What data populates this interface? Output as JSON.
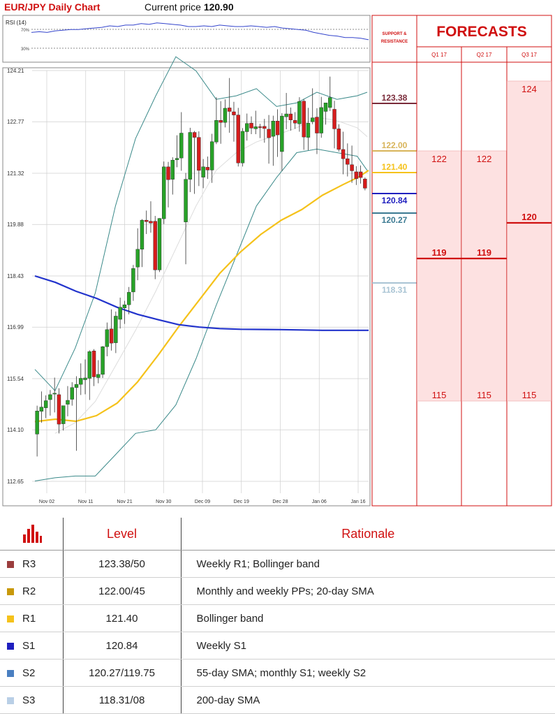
{
  "header": {
    "title": "EUR/JPY Daily Chart",
    "price_label": "Current price",
    "price_value": "120.90"
  },
  "rsi": {
    "label": "RSI (14)",
    "upper_label": "70%",
    "lower_label": "30%",
    "values": [
      62,
      63,
      62,
      64,
      65,
      66,
      66,
      67,
      68,
      69,
      71,
      70,
      72,
      72,
      74,
      73,
      75,
      74,
      73,
      72,
      70,
      70,
      71,
      70,
      72,
      71,
      70,
      70,
      71,
      70,
      69,
      70,
      68,
      67,
      66,
      65,
      62,
      60,
      58,
      57,
      55,
      55,
      54,
      52
    ]
  },
  "chart_data": {
    "type": "candlestick",
    "y_ticks": [
      "124.21",
      "122.77",
      "121.32",
      "119.88",
      "118.43",
      "116.99",
      "115.54",
      "114.10",
      "112.65"
    ],
    "ylim": [
      112.65,
      124.21
    ],
    "x_ticks": [
      "Nov 02",
      "Nov 11",
      "Nov 21",
      "Nov 30",
      "Dec 09",
      "Dec 19",
      "Dec 28",
      "Jan 06",
      "Jan 16"
    ],
    "candles": [
      {
        "o": 113.98,
        "h": 114.78,
        "l": 113.35,
        "c": 114.63
      },
      {
        "o": 114.62,
        "h": 115.18,
        "l": 114.3,
        "c": 114.74
      },
      {
        "o": 114.72,
        "h": 115.07,
        "l": 114.43,
        "c": 114.92
      },
      {
        "o": 114.95,
        "h": 115.22,
        "l": 114.5,
        "c": 115.09
      },
      {
        "o": 115.12,
        "h": 115.57,
        "l": 114.59,
        "c": 115.13
      },
      {
        "o": 115.09,
        "h": 115.27,
        "l": 114.0,
        "c": 114.26
      },
      {
        "o": 114.27,
        "h": 114.75,
        "l": 114.08,
        "c": 114.78
      },
      {
        "o": 114.82,
        "h": 115.33,
        "l": 114.48,
        "c": 114.93
      },
      {
        "o": 114.96,
        "h": 115.44,
        "l": 114.78,
        "c": 115.29
      },
      {
        "o": 115.29,
        "h": 115.61,
        "l": 113.51,
        "c": 115.38
      },
      {
        "o": 115.38,
        "h": 115.97,
        "l": 115.08,
        "c": 115.55
      },
      {
        "o": 115.51,
        "h": 116.08,
        "l": 115.1,
        "c": 115.56
      },
      {
        "o": 115.55,
        "h": 116.34,
        "l": 114.94,
        "c": 116.3
      },
      {
        "o": 116.32,
        "h": 116.37,
        "l": 115.33,
        "c": 115.59
      },
      {
        "o": 115.57,
        "h": 116.06,
        "l": 115.41,
        "c": 115.66
      },
      {
        "o": 115.66,
        "h": 116.46,
        "l": 115.56,
        "c": 116.44
      },
      {
        "o": 116.44,
        "h": 117.12,
        "l": 116.17,
        "c": 116.92
      },
      {
        "o": 116.94,
        "h": 117.49,
        "l": 116.33,
        "c": 116.54
      },
      {
        "o": 116.55,
        "h": 117.43,
        "l": 116.26,
        "c": 117.3
      },
      {
        "o": 117.21,
        "h": 117.82,
        "l": 116.95,
        "c": 117.55
      },
      {
        "o": 117.53,
        "h": 117.73,
        "l": 117.08,
        "c": 117.62
      },
      {
        "o": 117.62,
        "h": 118.12,
        "l": 117.35,
        "c": 117.97
      },
      {
        "o": 117.98,
        "h": 118.74,
        "l": 117.73,
        "c": 118.64
      },
      {
        "o": 118.68,
        "h": 119.77,
        "l": 118.31,
        "c": 119.18
      },
      {
        "o": 119.18,
        "h": 120.03,
        "l": 118.68,
        "c": 120.0
      },
      {
        "o": 120.0,
        "h": 120.27,
        "l": 119.61,
        "c": 119.96
      },
      {
        "o": 119.97,
        "h": 120.53,
        "l": 119.65,
        "c": 119.92
      },
      {
        "o": 119.97,
        "h": 120.12,
        "l": 118.34,
        "c": 118.6
      },
      {
        "o": 118.6,
        "h": 120.06,
        "l": 118.54,
        "c": 120.05
      },
      {
        "o": 120.04,
        "h": 121.65,
        "l": 119.89,
        "c": 121.5
      },
      {
        "o": 121.5,
        "h": 121.64,
        "l": 120.36,
        "c": 121.14
      },
      {
        "o": 121.15,
        "h": 121.77,
        "l": 120.72,
        "c": 121.69
      },
      {
        "o": 121.7,
        "h": 122.39,
        "l": 121.49,
        "c": 121.74
      },
      {
        "o": 121.75,
        "h": 123.04,
        "l": 121.39,
        "c": 122.45
      },
      {
        "o": 119.95,
        "h": 121.33,
        "l": 118.76,
        "c": 121.15
      },
      {
        "o": 121.15,
        "h": 122.6,
        "l": 120.79,
        "c": 122.47
      },
      {
        "o": 122.47,
        "h": 122.51,
        "l": 120.74,
        "c": 122.33
      },
      {
        "o": 122.33,
        "h": 122.5,
        "l": 120.96,
        "c": 121.4
      },
      {
        "o": 121.21,
        "h": 121.72,
        "l": 120.9,
        "c": 121.5
      },
      {
        "o": 121.49,
        "h": 121.79,
        "l": 121.16,
        "c": 121.41
      },
      {
        "o": 121.41,
        "h": 122.43,
        "l": 121.05,
        "c": 122.21
      },
      {
        "o": 122.2,
        "h": 123.46,
        "l": 122.14,
        "c": 122.81
      },
      {
        "o": 122.81,
        "h": 123.35,
        "l": 122.15,
        "c": 122.75
      },
      {
        "o": 122.75,
        "h": 123.4,
        "l": 122.61,
        "c": 123.15
      },
      {
        "o": 123.16,
        "h": 124.0,
        "l": 122.46,
        "c": 123.06
      },
      {
        "o": 123.05,
        "h": 123.33,
        "l": 122.21,
        "c": 122.96
      },
      {
        "o": 122.96,
        "h": 123.16,
        "l": 121.51,
        "c": 121.61
      },
      {
        "o": 121.61,
        "h": 122.59,
        "l": 121.51,
        "c": 122.5
      },
      {
        "o": 122.49,
        "h": 123.0,
        "l": 122.24,
        "c": 122.72
      },
      {
        "o": 122.73,
        "h": 122.92,
        "l": 122.42,
        "c": 122.59
      },
      {
        "o": 122.57,
        "h": 123.08,
        "l": 122.42,
        "c": 122.63
      },
      {
        "o": 122.63,
        "h": 122.71,
        "l": 122.31,
        "c": 122.62
      },
      {
        "o": 122.64,
        "h": 122.85,
        "l": 122.18,
        "c": 122.58
      },
      {
        "o": 122.56,
        "h": 122.96,
        "l": 121.59,
        "c": 122.32
      },
      {
        "o": 122.36,
        "h": 122.94,
        "l": 121.53,
        "c": 122.79
      },
      {
        "o": 122.79,
        "h": 123.12,
        "l": 121.78,
        "c": 122.4
      },
      {
        "o": 121.93,
        "h": 123.01,
        "l": 121.38,
        "c": 122.93
      },
      {
        "o": 122.91,
        "h": 123.58,
        "l": 122.56,
        "c": 122.99
      },
      {
        "o": 122.99,
        "h": 123.17,
        "l": 122.52,
        "c": 122.82
      },
      {
        "o": 122.81,
        "h": 123.04,
        "l": 122.57,
        "c": 122.73
      },
      {
        "o": 122.71,
        "h": 123.46,
        "l": 122.49,
        "c": 123.34
      },
      {
        "o": 123.35,
        "h": 123.41,
        "l": 121.98,
        "c": 122.34
      },
      {
        "o": 122.33,
        "h": 123.16,
        "l": 121.97,
        "c": 122.73
      },
      {
        "o": 122.77,
        "h": 123.71,
        "l": 122.7,
        "c": 122.88
      },
      {
        "o": 122.9,
        "h": 123.15,
        "l": 121.86,
        "c": 122.45
      },
      {
        "o": 122.45,
        "h": 123.47,
        "l": 122.32,
        "c": 123.17
      },
      {
        "o": 123.06,
        "h": 123.25,
        "l": 122.69,
        "c": 123.3
      },
      {
        "o": 123.17,
        "h": 124.04,
        "l": 123.07,
        "c": 123.45
      },
      {
        "o": 123.12,
        "h": 123.36,
        "l": 122.02,
        "c": 122.57
      },
      {
        "o": 122.57,
        "h": 122.7,
        "l": 121.93,
        "c": 121.99
      },
      {
        "o": 121.99,
        "h": 122.49,
        "l": 121.29,
        "c": 121.73
      },
      {
        "o": 121.73,
        "h": 122.16,
        "l": 121.23,
        "c": 121.57
      },
      {
        "o": 121.56,
        "h": 122.1,
        "l": 121.05,
        "c": 121.39
      },
      {
        "o": 121.36,
        "h": 121.52,
        "l": 120.99,
        "c": 121.17
      },
      {
        "o": 121.36,
        "h": 121.54,
        "l": 121.03,
        "c": 121.2
      },
      {
        "o": 121.16,
        "h": 121.2,
        "l": 120.84,
        "c": 120.9
      }
    ],
    "bollinger_upper": [
      [
        0,
        115.8
      ],
      [
        10,
        115.2
      ],
      [
        20,
        116.4
      ],
      [
        30,
        117.95
      ],
      [
        40,
        120.4
      ],
      [
        50,
        122.3
      ],
      [
        60,
        123.5
      ],
      [
        70,
        124.6
      ],
      [
        80,
        124.2
      ],
      [
        90,
        123.4
      ],
      [
        100,
        123.5
      ],
      [
        110,
        123.7
      ],
      [
        120,
        123.2
      ],
      [
        130,
        123.3
      ],
      [
        140,
        123.6
      ],
      [
        150,
        123.4
      ],
      [
        160,
        123.5
      ],
      [
        165,
        123.6
      ]
    ],
    "bollinger_lower": [
      [
        0,
        112.66
      ],
      [
        10,
        112.75
      ],
      [
        20,
        112.8
      ],
      [
        30,
        112.8
      ],
      [
        40,
        113.4
      ],
      [
        50,
        114.0
      ],
      [
        60,
        114.1
      ],
      [
        70,
        114.8
      ],
      [
        80,
        116.1
      ],
      [
        90,
        117.6
      ],
      [
        100,
        119.0
      ],
      [
        110,
        120.4
      ],
      [
        120,
        121.2
      ],
      [
        130,
        121.9
      ],
      [
        140,
        122.0
      ],
      [
        150,
        121.9
      ],
      [
        160,
        121.8
      ],
      [
        165,
        121.4
      ]
    ],
    "sma20": [
      [
        10,
        114.0
      ],
      [
        20,
        114.3
      ],
      [
        30,
        114.9
      ],
      [
        40,
        115.9
      ],
      [
        50,
        116.9
      ],
      [
        60,
        118.0
      ],
      [
        70,
        119.2
      ],
      [
        80,
        120.4
      ],
      [
        90,
        121.4
      ],
      [
        100,
        121.9
      ],
      [
        110,
        122.2
      ],
      [
        120,
        122.4
      ],
      [
        130,
        122.6
      ],
      [
        140,
        122.9
      ],
      [
        150,
        122.8
      ],
      [
        160,
        122.6
      ],
      [
        165,
        122.35
      ]
    ],
    "sma55": [
      [
        0,
        114.33
      ],
      [
        20,
        114.4
      ],
      [
        40,
        114.34
      ],
      [
        60,
        114.5
      ],
      [
        80,
        114.85
      ],
      [
        100,
        115.45
      ],
      [
        120,
        116.2
      ],
      [
        140,
        117.0
      ],
      [
        160,
        117.75
      ],
      [
        180,
        118.5
      ],
      [
        200,
        119.1
      ],
      [
        220,
        119.6
      ],
      [
        240,
        120.0
      ],
      [
        260,
        120.3
      ],
      [
        280,
        120.7
      ],
      [
        300,
        121.0
      ],
      [
        315,
        121.21
      ],
      [
        325,
        121.4
      ]
    ],
    "sma200": [
      [
        0,
        118.43
      ],
      [
        20,
        118.25
      ],
      [
        40,
        118.0
      ],
      [
        60,
        117.8
      ],
      [
        80,
        117.55
      ],
      [
        100,
        117.35
      ],
      [
        120,
        117.2
      ],
      [
        140,
        117.06
      ],
      [
        160,
        116.99
      ],
      [
        180,
        116.95
      ],
      [
        200,
        116.93
      ],
      [
        240,
        116.92
      ],
      [
        280,
        116.9
      ],
      [
        325,
        116.9
      ]
    ],
    "sr_levels": [
      {
        "value": 123.38,
        "label": "123.38",
        "color": "#7a2b3a"
      },
      {
        "value": 122.0,
        "label": "122.00",
        "color": "#d8b45a"
      },
      {
        "value": 121.4,
        "label": "121.40",
        "color": "#f5c21b"
      },
      {
        "value": 120.84,
        "label": "120.84",
        "color": "#1f1fbf"
      },
      {
        "value": 120.27,
        "label": "120.27",
        "color": "#3b7a92"
      },
      {
        "value": 118.31,
        "label": "118.31",
        "color": "#a9c4d4"
      }
    ]
  },
  "sr_header": [
    "SUPPORT &",
    "RESISTANCE"
  ],
  "forecasts": {
    "title": "FORECASTS",
    "quarters": [
      "Q1 17",
      "Q2 17",
      "Q3 17"
    ],
    "columns": [
      {
        "high": 122,
        "mid": 119,
        "low": 115
      },
      {
        "high": 122,
        "mid": 119,
        "low": 115
      },
      {
        "high": 124,
        "mid": 120,
        "low": 115
      }
    ]
  },
  "table": {
    "icon_name": "bar-chart-icon",
    "header_level": "Level",
    "header_rationale": "Rationale",
    "rows": [
      {
        "name": "R3",
        "level": "123.38/50",
        "rationale": "Weekly R1; Bollinger band",
        "color": "#9b3d3d"
      },
      {
        "name": "R2",
        "level": "122.00/45",
        "rationale": "Monthly and weekly PPs; 20-day SMA",
        "color": "#c8990a"
      },
      {
        "name": "R1",
        "level": "121.40",
        "rationale": "Bollinger band",
        "color": "#f5c21b"
      },
      {
        "name": "S1",
        "level": "120.84",
        "rationale": "Weekly S1",
        "color": "#1f1fbf"
      },
      {
        "name": "S2",
        "level": "120.27/119.75",
        "rationale": "55-day SMA; monthly S1; weekly S2",
        "color": "#4a7fc1"
      },
      {
        "name": "S3",
        "level": "118.31/08",
        "rationale": "200-day SMA",
        "color": "#b9cfe6"
      }
    ]
  }
}
